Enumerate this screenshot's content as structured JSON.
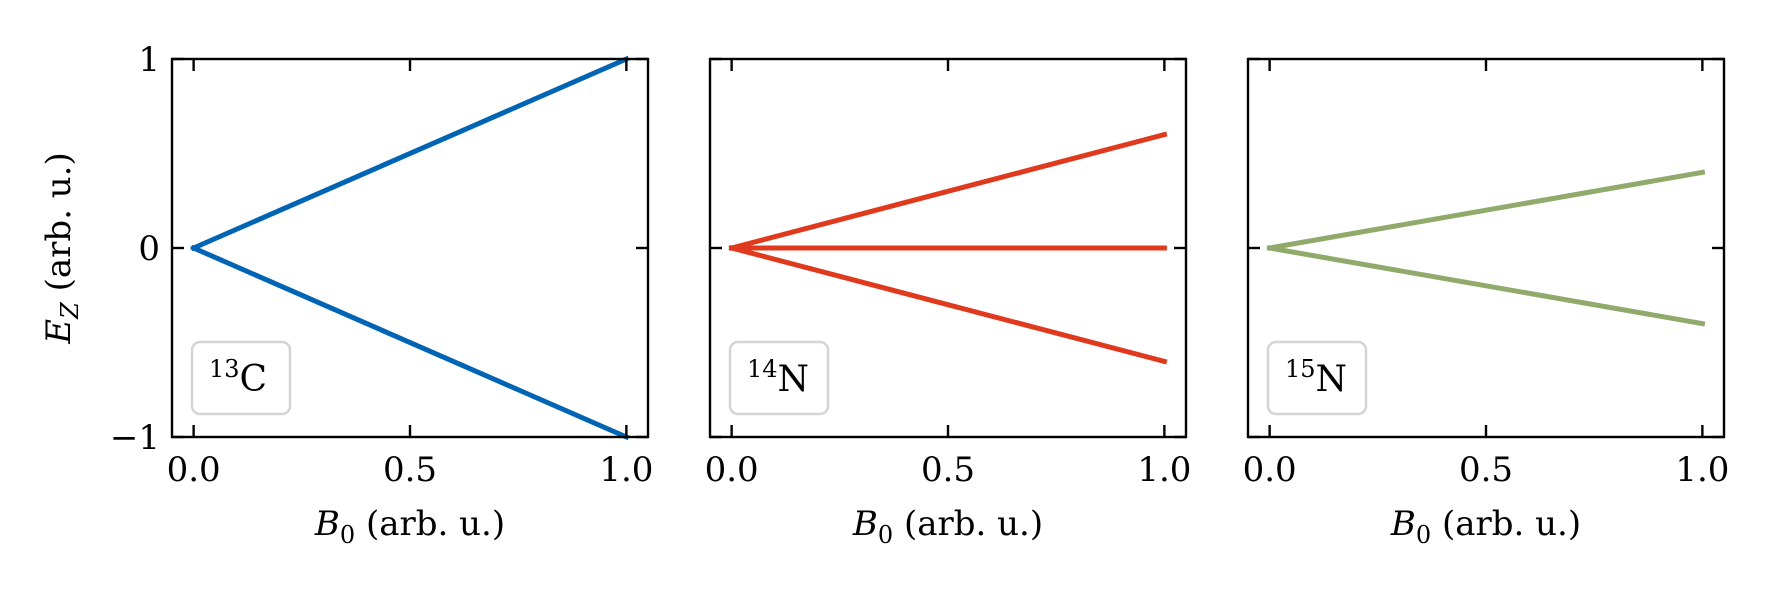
{
  "chart_data": [
    {
      "type": "line",
      "legend_label": {
        "mass": "13",
        "element": "C"
      },
      "legend_placement": "lower-left",
      "xlabel": {
        "symbol": "B",
        "sub": "0",
        "unit": "(arb. u.)"
      },
      "ylabel": {
        "symbol": "E",
        "sub": "Z",
        "unit": "(arb. u.)"
      },
      "xlim": [
        -0.05,
        1.05
      ],
      "ylim": [
        -1,
        1
      ],
      "xticks": [
        "0.0",
        "0.5",
        "1.0"
      ],
      "yticks": [
        "1",
        "0",
        "−1"
      ],
      "color": "#0064B4",
      "series": [
        {
          "x": [
            0,
            1
          ],
          "y": [
            0,
            1
          ]
        },
        {
          "x": [
            0,
            1
          ],
          "y": [
            0,
            -1
          ]
        }
      ]
    },
    {
      "type": "line",
      "legend_label": {
        "mass": "14",
        "element": "N"
      },
      "legend_placement": "lower-left",
      "xlabel": {
        "symbol": "B",
        "sub": "0",
        "unit": "(arb. u.)"
      },
      "xlim": [
        -0.05,
        1.05
      ],
      "ylim": [
        -1,
        1
      ],
      "xticks": [
        "0.0",
        "0.5",
        "1.0"
      ],
      "color": "#E03A1E",
      "series": [
        {
          "x": [
            0,
            1
          ],
          "y": [
            0,
            0.6
          ]
        },
        {
          "x": [
            0,
            1
          ],
          "y": [
            0,
            0
          ]
        },
        {
          "x": [
            0,
            1
          ],
          "y": [
            0,
            -0.6
          ]
        }
      ]
    },
    {
      "type": "line",
      "legend_label": {
        "mass": "15",
        "element": "N"
      },
      "legend_placement": "lower-left",
      "xlabel": {
        "symbol": "B",
        "sub": "0",
        "unit": "(arb. u.)"
      },
      "xlim": [
        -0.05,
        1.05
      ],
      "ylim": [
        -1,
        1
      ],
      "xticks": [
        "0.0",
        "0.5",
        "1.0"
      ],
      "color": "#8FAA6A",
      "series": [
        {
          "x": [
            0,
            1
          ],
          "y": [
            0,
            0.4
          ]
        },
        {
          "x": [
            0,
            1
          ],
          "y": [
            0,
            -0.4
          ]
        }
      ]
    }
  ]
}
